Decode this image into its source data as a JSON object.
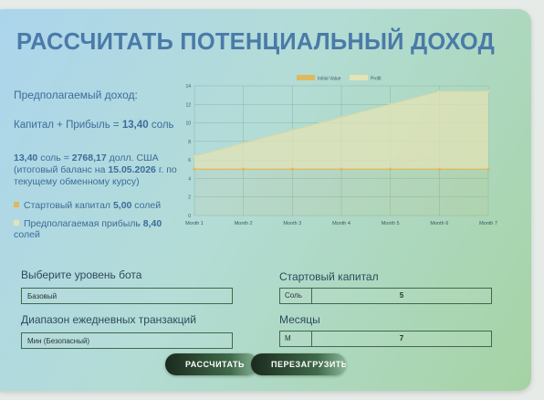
{
  "title": "РАССЧИТАТЬ ПОТЕНЦИАЛЬНЫЙ ДОХОД",
  "summary": {
    "expected_label": "Предполагаемый доход:",
    "capital_plus_profit_prefix": "Капитал + Прибыль = ",
    "capital_plus_profit_value": "13,40",
    "capital_plus_profit_unit": " соль",
    "balance_sol": "13,40",
    "balance_mid": " соль = ",
    "balance_usd": "2768,17",
    "balance_usd_unit": " долл. США",
    "balance_note_prefix": "(итоговый баланс на ",
    "balance_date": "15.05.2026",
    "balance_note_suffix": " г. по текущему обменному курсу)"
  },
  "legend": {
    "start_capital_label": "Стартовый капитал ",
    "start_capital_value": "5,00",
    "start_capital_unit": " солей",
    "expected_profit_label": "Предполагаемая прибыль ",
    "expected_profit_value": "8,40",
    "expected_profit_unit": " солей"
  },
  "chart_data": {
    "type": "area",
    "categories": [
      "Month 1",
      "Month 2",
      "Month 3",
      "Month 4",
      "Month 5",
      "Month 6",
      "Month 7"
    ],
    "series": [
      {
        "name": "Initial Value",
        "values": [
          5,
          5,
          5,
          5,
          5,
          5,
          5
        ],
        "color": "#e0b85e"
      },
      {
        "name": "Profit",
        "values": [
          1.4,
          2.8,
          4.2,
          5.6,
          7.0,
          8.4,
          8.4
        ],
        "color": "#e4e3b6"
      }
    ],
    "stacked": true,
    "ylim": [
      0,
      14
    ],
    "yticks": [
      0,
      2,
      4,
      6,
      8,
      10,
      12,
      14
    ],
    "grid": true,
    "legend_position": "top"
  },
  "form": {
    "bot_level_label": "Выберите уровень бота",
    "bot_level_value": "Базовый",
    "start_capital_label": "Стартовый капитал",
    "start_capital_currency": "Соль",
    "start_capital_value": "5",
    "daily_range_label": "Диапазон ежедневных транзакций",
    "daily_range_value": "Мин (Безопасный)",
    "months_label": "Месяцы",
    "months_prefix": "М",
    "months_value": "7"
  },
  "buttons": {
    "calculate": "РАССЧИТАТЬ",
    "reset": "ПЕРЕЗАГРУЗИТЬ"
  }
}
